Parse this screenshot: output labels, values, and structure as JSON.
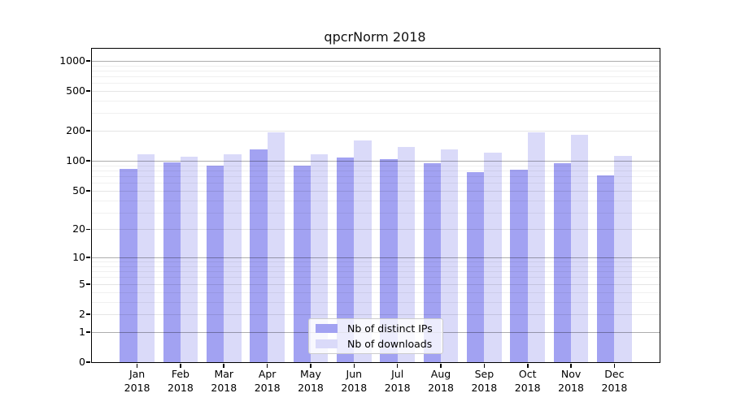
{
  "title": "qpcrNorm 2018",
  "chart_data": {
    "type": "bar",
    "title": "qpcrNorm 2018",
    "categories": [
      "Jan",
      "Feb",
      "Mar",
      "Apr",
      "May",
      "Jun",
      "Jul",
      "Aug",
      "Sep",
      "Oct",
      "Nov",
      "Dec"
    ],
    "x_sublabel": "2018",
    "series": [
      {
        "name": "Nb of distinct IPs",
        "color": "#a2a2f2",
        "values": [
          83,
          97,
          89,
          130,
          89,
          108,
          105,
          94,
          77,
          82,
          94,
          72
        ]
      },
      {
        "name": "Nb of downloads",
        "color": "#dadaf9",
        "values": [
          117,
          110,
          116,
          193,
          116,
          160,
          138,
          130,
          120,
          192,
          184,
          113
        ]
      }
    ],
    "yscale": "log10(value+1)",
    "y_ticks": [
      0,
      1,
      2,
      5,
      10,
      20,
      50,
      100,
      200,
      500,
      1000
    ],
    "y_minor_gridlines": [
      3,
      4,
      6,
      7,
      8,
      9,
      30,
      40,
      60,
      70,
      80,
      90,
      300,
      400,
      600,
      700,
      800,
      900
    ],
    "ylim": [
      0,
      1320
    ],
    "grid": true,
    "legend_position": "bottom-center",
    "axis_color": "#000000",
    "background_color": "#ffffff"
  }
}
